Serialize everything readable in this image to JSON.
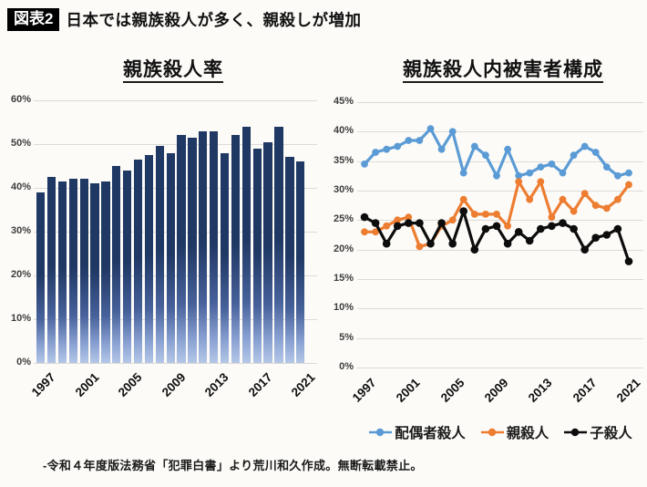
{
  "header": {
    "badge": "図表2",
    "title": "日本では親族殺人が多く、親殺しが増加"
  },
  "footer": {
    "source": "-令和４年度版法務省「犯罪白書」より荒川和久作成。無断転載禁止。"
  },
  "chart_data": [
    {
      "type": "bar",
      "title": "親族殺人率",
      "categories": [
        1997,
        1998,
        1999,
        2000,
        2001,
        2002,
        2003,
        2004,
        2005,
        2006,
        2007,
        2008,
        2009,
        2010,
        2011,
        2012,
        2013,
        2014,
        2015,
        2016,
        2017,
        2018,
        2019,
        2020,
        2021
      ],
      "values": [
        39,
        42.5,
        41.5,
        42,
        42,
        41,
        41.5,
        45,
        44,
        46.5,
        47.5,
        49.5,
        48,
        52,
        51.5,
        53,
        53,
        48,
        52,
        54,
        49,
        50.5,
        54,
        47,
        46
      ],
      "xlabel": "",
      "ylabel": "",
      "ylim": [
        0,
        60
      ],
      "ytick_labels": [
        "0%",
        "10%",
        "20%",
        "30%",
        "40%",
        "50%",
        "60%"
      ],
      "xtick_labels": [
        "1997",
        "2001",
        "2005",
        "2009",
        "2013",
        "2017",
        "2021"
      ],
      "grid": true,
      "bar_color_top": "#1f3864",
      "bar_color_bottom": "#b4c7e7"
    },
    {
      "type": "line",
      "title": "親族殺人内被害者構成",
      "x": [
        1997,
        1998,
        1999,
        2000,
        2001,
        2002,
        2003,
        2004,
        2005,
        2006,
        2007,
        2008,
        2009,
        2010,
        2011,
        2012,
        2013,
        2014,
        2015,
        2016,
        2017,
        2018,
        2019,
        2020,
        2021
      ],
      "series": [
        {
          "name": "配偶者殺人",
          "color": "#5b9bd5",
          "values": [
            34.5,
            36.5,
            37,
            37.5,
            38.5,
            38.5,
            40.5,
            37,
            40,
            33,
            37.5,
            36,
            32.5,
            37,
            32.5,
            33,
            34,
            34.5,
            33,
            36,
            37.5,
            36.5,
            34,
            32.5,
            33
          ]
        },
        {
          "name": "親殺人",
          "color": "#ed7d31",
          "values": [
            23,
            23,
            24,
            25,
            25.5,
            20.5,
            21,
            24,
            25,
            28.5,
            26,
            26,
            26,
            24,
            31.5,
            28.5,
            31.5,
            25.5,
            28.5,
            26.5,
            29.5,
            27.5,
            27,
            28.5,
            31
          ]
        },
        {
          "name": "子殺人",
          "color": "#0d0d0d",
          "values": [
            25.5,
            24.5,
            21,
            24,
            24.5,
            24.5,
            21,
            24.5,
            21,
            26.5,
            20,
            23.5,
            24,
            21,
            23,
            21.5,
            23.5,
            24,
            24.5,
            23.5,
            20,
            22,
            22.5,
            23.5,
            18
          ]
        }
      ],
      "ylim": [
        0,
        45
      ],
      "ytick_labels": [
        "0%",
        "5%",
        "10%",
        "15%",
        "20%",
        "25%",
        "30%",
        "35%",
        "40%",
        "45%"
      ],
      "xtick_labels": [
        "1997",
        "2001",
        "2005",
        "2009",
        "2013",
        "2017",
        "2021"
      ],
      "grid": true,
      "legend_position": "bottom"
    }
  ]
}
